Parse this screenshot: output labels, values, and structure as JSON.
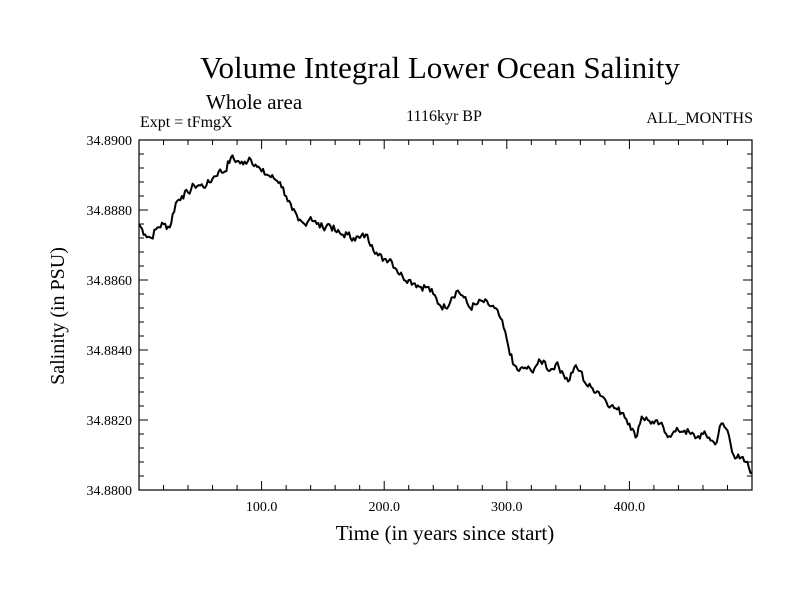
{
  "chart_data": {
    "type": "line",
    "title": "Volume Integral Lower Ocean Salinity",
    "subtitle": "Whole area",
    "left_label": "Expt = tFmgX",
    "center_label": "1116kyr BP",
    "right_label": "ALL_MONTHS",
    "xlabel": "Time (in years since start)",
    "ylabel": "Salinity (in PSU)",
    "xlim": [
      0,
      500
    ],
    "ylim": [
      34.88,
      34.89
    ],
    "xticks": [
      100,
      200,
      300,
      400
    ],
    "xtick_labels": [
      "100.0",
      "200.0",
      "300.0",
      "400.0"
    ],
    "yticks": [
      34.88,
      34.882,
      34.884,
      34.886,
      34.888,
      34.89
    ],
    "ytick_labels": [
      "34.8800",
      "34.8820",
      "34.8840",
      "34.8860",
      "34.8880",
      "34.8900"
    ],
    "series": [
      {
        "name": "salinity",
        "x": [
          0,
          5,
          10,
          15,
          20,
          25,
          30,
          35,
          40,
          45,
          50,
          55,
          60,
          65,
          70,
          75,
          80,
          85,
          90,
          95,
          100,
          105,
          110,
          115,
          120,
          125,
          130,
          135,
          140,
          145,
          150,
          155,
          160,
          165,
          170,
          175,
          180,
          185,
          190,
          195,
          200,
          205,
          210,
          215,
          220,
          225,
          230,
          235,
          240,
          245,
          250,
          255,
          260,
          265,
          270,
          275,
          280,
          285,
          290,
          295,
          300,
          305,
          310,
          315,
          320,
          325,
          330,
          335,
          340,
          345,
          350,
          355,
          360,
          365,
          370,
          375,
          380,
          385,
          390,
          395,
          400,
          405,
          410,
          415,
          420,
          425,
          430,
          435,
          440,
          445,
          450,
          455,
          460,
          465,
          470,
          475,
          480,
          485,
          490,
          495,
          500
        ],
        "values": [
          34.8876,
          34.8873,
          34.8872,
          34.8875,
          34.8876,
          34.8875,
          34.8882,
          34.8884,
          34.8885,
          34.8887,
          34.8887,
          34.8887,
          34.8889,
          34.8891,
          34.8891,
          34.8895,
          34.8894,
          34.8893,
          34.8895,
          34.8893,
          34.8891,
          34.889,
          34.8889,
          34.8888,
          34.8884,
          34.888,
          34.8877,
          34.8876,
          34.8878,
          34.8876,
          34.8875,
          34.8876,
          34.8874,
          34.8873,
          34.8873,
          34.8872,
          34.8872,
          34.8873,
          34.887,
          34.8867,
          34.8866,
          34.8866,
          34.8863,
          34.8861,
          34.886,
          34.8859,
          34.8858,
          34.8858,
          34.8856,
          34.8853,
          34.8852,
          34.8855,
          34.8857,
          34.8855,
          34.8852,
          34.8853,
          34.8854,
          34.8853,
          34.8852,
          34.8849,
          34.8843,
          34.8836,
          34.8834,
          34.8835,
          34.8834,
          34.8836,
          34.8837,
          34.8834,
          34.8836,
          34.8834,
          34.8831,
          34.8835,
          34.8834,
          34.883,
          34.8829,
          34.8828,
          34.8826,
          34.8824,
          34.8823,
          34.8822,
          34.8819,
          34.8815,
          34.8821,
          34.882,
          34.8819,
          34.8819,
          34.8816,
          34.8816,
          34.8817,
          34.8817,
          34.8816,
          34.8815,
          34.8816,
          34.8815,
          34.8813,
          34.8819,
          34.8817,
          34.881,
          34.8809,
          34.8808,
          34.8805
        ]
      }
    ]
  }
}
